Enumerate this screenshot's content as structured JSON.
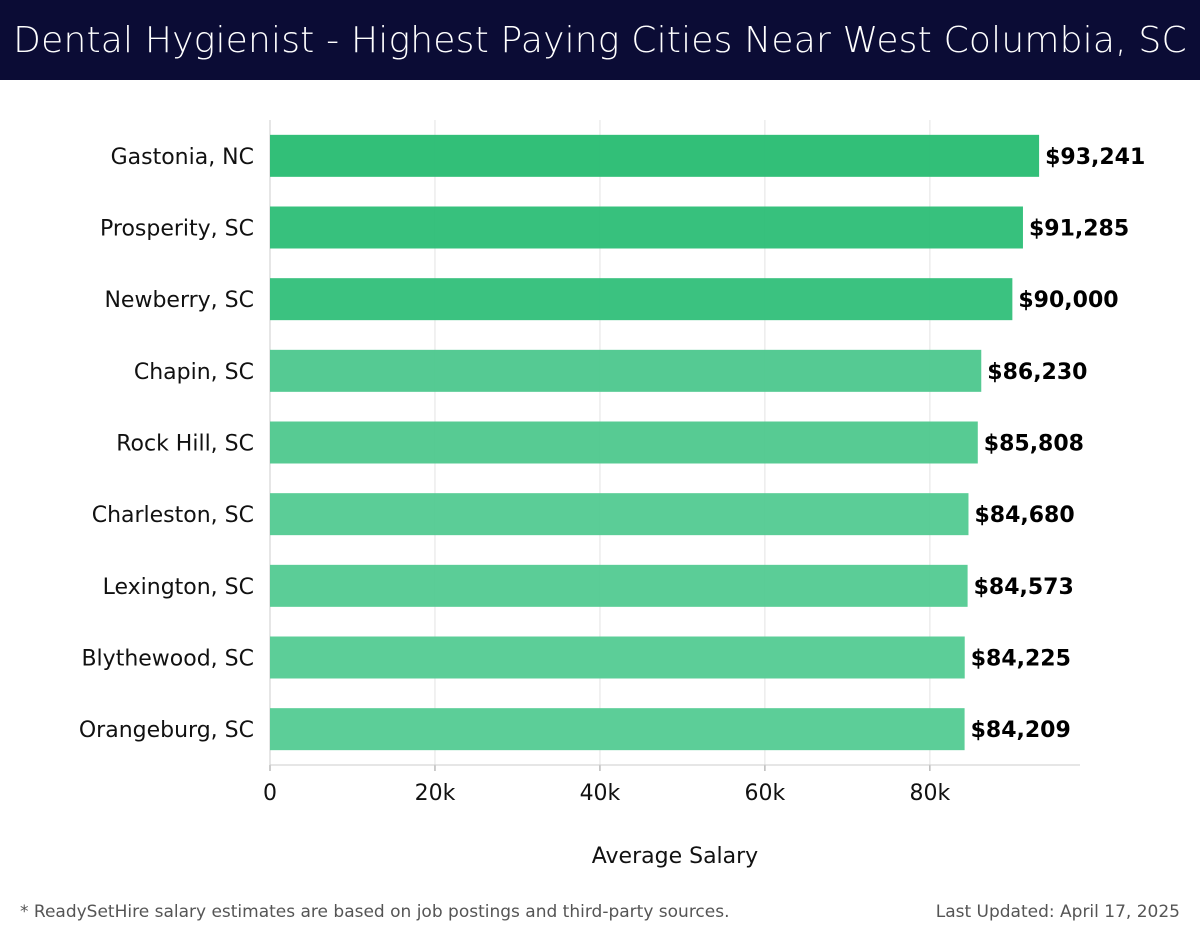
{
  "header": {
    "title": "Dental Hygienist - Highest Paying Cities Near West Columbia, SC"
  },
  "chart_data": {
    "type": "bar",
    "orientation": "horizontal",
    "title": "Dental Hygienist - Highest Paying Cities Near West Columbia, SC",
    "categories": [
      "Gastonia, NC",
      "Prosperity, SC",
      "Newberry, SC",
      "Chapin, SC",
      "Rock Hill, SC",
      "Charleston, SC",
      "Lexington, SC",
      "Blythewood, SC",
      "Orangeburg, SC"
    ],
    "values": [
      93241,
      91285,
      90000,
      86230,
      85808,
      84680,
      84573,
      84225,
      84209
    ],
    "labels": [
      "$93,241",
      "$91,285",
      "$90,000",
      "$86,230",
      "$85,808",
      "$84,680",
      "$84,573",
      "$84,225",
      "$84,209"
    ],
    "colors": [
      "#2bbd74",
      "#31bf79",
      "#35c07c",
      "#50c88f",
      "#52c990",
      "#56cb94",
      "#56cb94",
      "#57cc95",
      "#57cc95"
    ],
    "xlabel": "Average Salary",
    "ylabel": "",
    "xticks": [
      0,
      20000,
      40000,
      60000,
      80000
    ],
    "xtick_labels": [
      "0",
      "20k",
      "40k",
      "60k",
      "80k"
    ],
    "xlim": [
      0,
      98200
    ],
    "grid": true
  },
  "footer": {
    "note": "* ReadySetHire salary estimates are based on job postings and third-party sources.",
    "updated": "Last Updated: April 17, 2025"
  }
}
